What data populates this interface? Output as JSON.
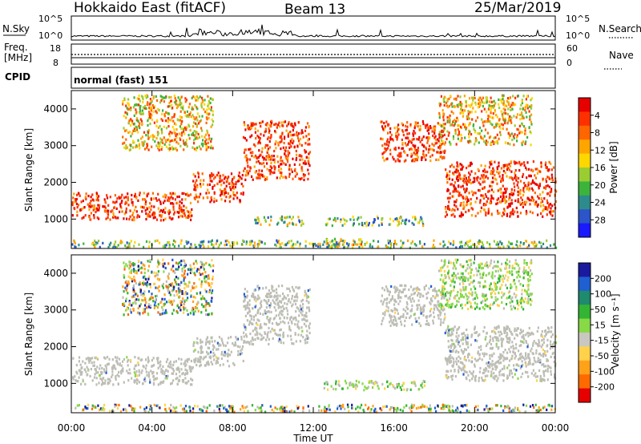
{
  "header": {
    "site": "Hokkaido East (fitACF)",
    "beam": "Beam 13",
    "date": "25/Mar/2019"
  },
  "noise_panel": {
    "left_label": "N.Sky",
    "right_label": "N.Search",
    "ticks": [
      "10^5",
      "10^0"
    ]
  },
  "freq_panel": {
    "left_label_1": "Freq.",
    "left_label_2": "[MHz]",
    "left_ticks": [
      "18",
      "8"
    ],
    "right_label": "Nave",
    "right_ticks": [
      "60",
      "0"
    ]
  },
  "cpid_panel": {
    "label": "CPID",
    "mode": "normal (fast) 151"
  },
  "colors": {
    "power": [
      "#1a1aff",
      "#2b55c8",
      "#2e8b8b",
      "#3cb43c",
      "#9acd32",
      "#ffd700",
      "#ffa500",
      "#ff6600",
      "#ff3000",
      "#e60000"
    ],
    "velocity": [
      "#1a1a9e",
      "#1f5fd1",
      "#1f8a6d",
      "#33b533",
      "#88d948",
      "#c8c8c0",
      "#ffd24a",
      "#ffa21a",
      "#ff6a00",
      "#e60000"
    ],
    "ground_scatter": "#bdbdb5"
  },
  "chart_data": [
    {
      "type": "heatmap",
      "name": "power",
      "ylabel": "Slant Range [km]",
      "yticks": [
        1000,
        2000,
        3000,
        4000
      ],
      "ylim": [
        200,
        4500
      ],
      "x_ticks": [
        "00:00",
        "04:00",
        "08:00",
        "12:00",
        "16:00",
        "20:00",
        "00:00"
      ],
      "xlim_hours": [
        0,
        24
      ],
      "colorbar": {
        "label": "Power [dB]",
        "ticks": [
          "4",
          "8",
          "12",
          "16",
          "20",
          "24",
          "28"
        ],
        "range": [
          0,
          30
        ]
      },
      "regions": [
        {
          "h": [
            0,
            6
          ],
          "r": [
            1000,
            1750
          ],
          "level": "high"
        },
        {
          "h": [
            6,
            8.5
          ],
          "r": [
            1500,
            2300
          ],
          "level": "high"
        },
        {
          "h": [
            8.5,
            11.8
          ],
          "r": [
            2100,
            3700
          ],
          "level": "high"
        },
        {
          "h": [
            15.3,
            18.5
          ],
          "r": [
            2600,
            3700
          ],
          "level": "high"
        },
        {
          "h": [
            18.5,
            24
          ],
          "r": [
            1100,
            2600
          ],
          "level": "high"
        },
        {
          "h": [
            2.5,
            7
          ],
          "r": [
            2900,
            4400
          ],
          "level": "medium"
        },
        {
          "h": [
            18.2,
            22.8
          ],
          "r": [
            3050,
            4400
          ],
          "level": "medium"
        },
        {
          "h": [
            9,
            11.5
          ],
          "r": [
            850,
            1100
          ],
          "level": "low"
        },
        {
          "h": [
            12.5,
            17.5
          ],
          "r": [
            850,
            1100
          ],
          "level": "low"
        },
        {
          "h": [
            12.5,
            14.5
          ],
          "r": [
            300,
            500
          ],
          "level": "medium"
        },
        {
          "h": [
            0,
            24
          ],
          "r": [
            250,
            450
          ],
          "level": "low"
        }
      ]
    },
    {
      "type": "heatmap",
      "name": "velocity",
      "ylabel": "Slant Range [km]",
      "yticks": [
        1000,
        2000,
        3000,
        4000
      ],
      "ylim": [
        200,
        4500
      ],
      "xlabel": "Time UT",
      "x_ticks": [
        "00:00",
        "04:00",
        "08:00",
        "12:00",
        "16:00",
        "20:00",
        "00:00"
      ],
      "xlim_hours": [
        0,
        24
      ],
      "colorbar": {
        "label": "Velocity [m s⁻¹]",
        "ticks": [
          "200",
          "100",
          "50",
          "15",
          "-15",
          "-50",
          "-100",
          "-200"
        ],
        "range": [
          -250,
          250
        ]
      },
      "regions": [
        {
          "h": [
            0,
            6
          ],
          "r": [
            1000,
            1750
          ],
          "level": "ground"
        },
        {
          "h": [
            6,
            8.5
          ],
          "r": [
            1500,
            2300
          ],
          "level": "ground"
        },
        {
          "h": [
            8.5,
            11.8
          ],
          "r": [
            2100,
            3700
          ],
          "level": "ground"
        },
        {
          "h": [
            15.3,
            18.5
          ],
          "r": [
            2600,
            3700
          ],
          "level": "ground"
        },
        {
          "h": [
            18.5,
            24
          ],
          "r": [
            1100,
            2600
          ],
          "level": "ground"
        },
        {
          "h": [
            2.5,
            7
          ],
          "r": [
            2900,
            4400
          ],
          "level": "mixed"
        },
        {
          "h": [
            18.2,
            22.8
          ],
          "r": [
            3050,
            4400
          ],
          "level": "green"
        },
        {
          "h": [
            12.5,
            17.5
          ],
          "r": [
            850,
            1100
          ],
          "level": "green"
        },
        {
          "h": [
            0,
            24
          ],
          "r": [
            250,
            450
          ],
          "level": "mixed"
        }
      ]
    }
  ]
}
